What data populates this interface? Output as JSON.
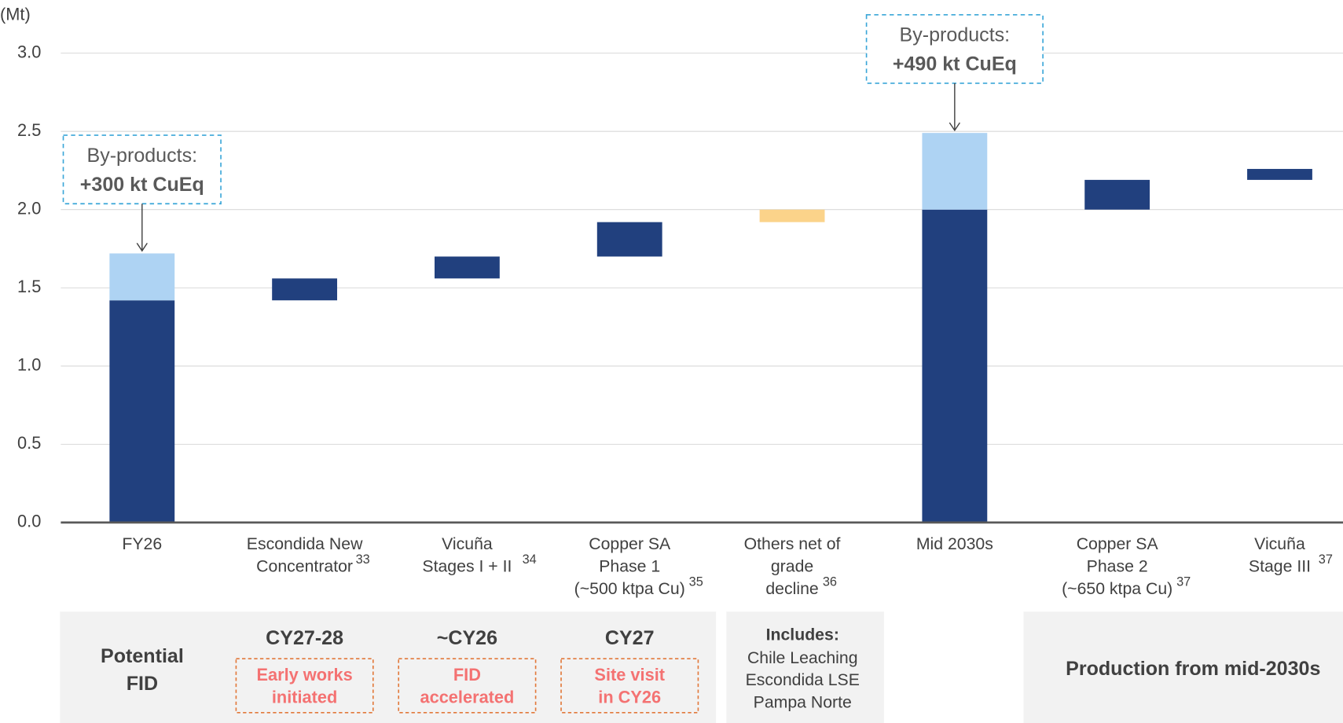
{
  "chart_data": {
    "type": "waterfall",
    "y_label": "(Mt)",
    "categories": [
      "FY26",
      "Escondida New\nConcentrator",
      "Vicuña\nStages I + II",
      "Copper SA\nPhase 1\n(~500 ktpa Cu)",
      "Others net of\ngrade\ndecline",
      "Mid 2030s",
      "Copper SA\nPhase 2\n(~650 ktpa Cu)",
      "Vicuña\nStage III"
    ],
    "footnotes": [
      null,
      33,
      34,
      35,
      36,
      null,
      37,
      37
    ],
    "values": [
      1.42,
      0.14,
      0.14,
      0.22,
      0.08,
      2.0,
      0.19,
      0.07
    ],
    "is_total": [
      true,
      false,
      false,
      false,
      false,
      true,
      false,
      false
    ],
    "colors": [
      "#21407e",
      "#21407e",
      "#21407e",
      "#21407e",
      "#fbd38a",
      "#21407e",
      "#21407e",
      "#21407e"
    ],
    "byproducts": {
      "name": "By-products:",
      "color": "#aed3f3",
      "values": [
        0.3,
        null,
        null,
        null,
        null,
        0.49,
        null,
        null
      ],
      "value_labels": [
        "+300 kt CuEq",
        null,
        null,
        null,
        null,
        "+490 kt CuEq",
        null,
        null
      ]
    },
    "ylim": [
      0,
      3.0
    ],
    "yticks": [
      {
        "value": 0,
        "label": "0.0"
      },
      0.5,
      {
        "value": 1,
        "label": "1.0"
      },
      1.5,
      {
        "value": 2,
        "label": "2.0"
      },
      2.5,
      {
        "value": 3,
        "label": "3.0"
      }
    ],
    "grid": true
  },
  "panels": {
    "fid": {
      "label": "Potential\nFID",
      "items": [
        {
          "date": "CY27-28",
          "note": "Early works\ninitiated"
        },
        {
          "date": "~CY26",
          "note": "FID\naccelerated"
        },
        {
          "date": "CY27",
          "note": "Site visit\nin CY26"
        }
      ]
    },
    "includes": {
      "title": "Includes:",
      "items": [
        "Chile Leaching",
        "Escondida LSE",
        "Pampa Norte"
      ]
    },
    "production": "Production from mid-2030s"
  }
}
